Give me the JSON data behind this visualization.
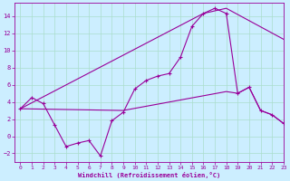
{
  "xlabel": "Windchill (Refroidissement éolien,°C)",
  "background_color": "#cceeff",
  "grid_color": "#aaddcc",
  "line_color": "#990099",
  "xlim": [
    -0.5,
    23
  ],
  "ylim": [
    -3,
    15.5
  ],
  "yticks": [
    -2,
    0,
    2,
    4,
    6,
    8,
    10,
    12,
    14
  ],
  "xticks": [
    0,
    1,
    2,
    3,
    4,
    5,
    6,
    7,
    8,
    9,
    10,
    11,
    12,
    13,
    14,
    15,
    16,
    17,
    18,
    19,
    20,
    21,
    22,
    23
  ],
  "line1_x": [
    0,
    1,
    2,
    3,
    4,
    5,
    6,
    7,
    8,
    9,
    10,
    11,
    12,
    13,
    14,
    15,
    16,
    17,
    18,
    19,
    20,
    21,
    22,
    23
  ],
  "line1_y": [
    3.2,
    4.5,
    3.8,
    1.3,
    -1.2,
    -0.8,
    -0.5,
    -2.3,
    1.8,
    2.8,
    5.5,
    6.5,
    7.0,
    7.3,
    9.2,
    12.8,
    14.3,
    14.9,
    14.3,
    5.0,
    5.7,
    3.0,
    2.5,
    1.5
  ],
  "line2_x": [
    0,
    16,
    18,
    23
  ],
  "line2_y": [
    3.2,
    14.3,
    14.9,
    11.3
  ],
  "line3_x": [
    0,
    9,
    18,
    19,
    20,
    21,
    22,
    23
  ],
  "line3_y": [
    3.2,
    3.0,
    5.2,
    5.0,
    5.7,
    3.0,
    2.5,
    1.5
  ]
}
